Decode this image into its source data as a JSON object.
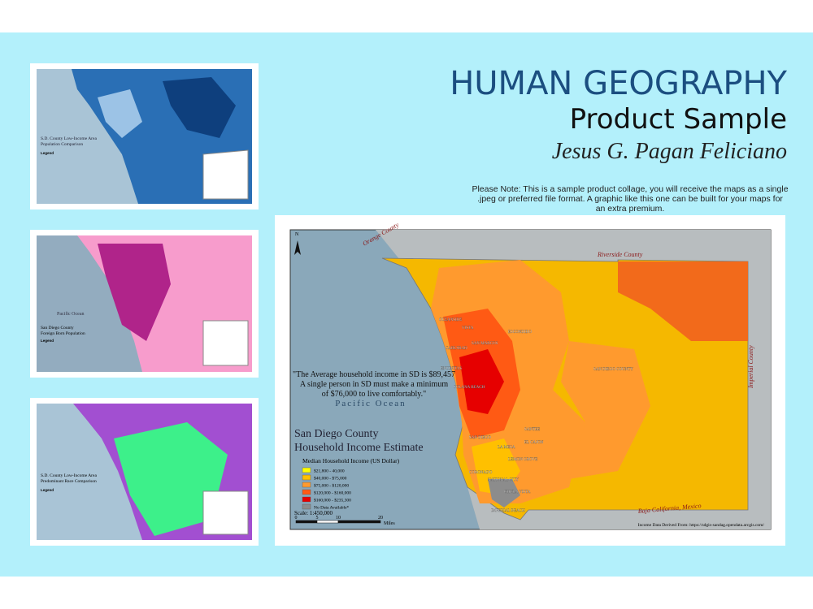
{
  "header": {
    "title": "HUMAN GEOGRAPHY",
    "subtitle": "Product Sample",
    "author": "Jesus G. Pagan Feliciano",
    "note": [
      "Please Note: This is a sample product collage, you will receive the maps as a single",
      ".jpeg or preferred file format. A graphic like this one can be built for your maps for",
      "an extra premium."
    ]
  },
  "maps": [
    {
      "title": [
        "S.D. County Low-Income Area",
        "Population Comparison"
      ],
      "legend": "Legend"
    },
    {
      "title": [
        "San Diego County",
        "Foreign Born Population"
      ],
      "ocean": "Pacific Ocean",
      "legend": "Legend"
    },
    {
      "title": [
        "S.D. County Low-Income Area",
        "Predominant Race Comparison"
      ],
      "legend": "Legend"
    }
  ],
  "main_map": {
    "title": [
      "San Diego County",
      "Household Income Estimate"
    ],
    "quote": [
      "\"The Average household income in SD is $89,457",
      "A single person in SD must make a minimum",
      "of $76,000 to live comfortably.\""
    ],
    "ocean": "Pacific Ocean",
    "north": "N",
    "legend_title": "Median Household Income (US Dollar)",
    "legend": [
      {
        "label": "$21,800 - 40,000",
        "color": "#ffff00"
      },
      {
        "label": "$40,000 - $75,000",
        "color": "#ffc000"
      },
      {
        "label": "$75,000 - $120,000",
        "color": "#ff9a2e"
      },
      {
        "label": "$120,000 - $160,000",
        "color": "#ff5a14"
      },
      {
        "label": "$160,000 - $235,300",
        "color": "#e60000"
      },
      {
        "label": "No Data Available*",
        "color": "#8c8c8c"
      }
    ],
    "regions": [
      "Orange County",
      "Riverside County",
      "Imperial County",
      "Baja California, Mexico"
    ],
    "places": [
      "OCEANSIDE",
      "VISTA",
      "ESCONDIDO",
      "CARLSBAD",
      "SAN MARCOS",
      "ENCINITAS",
      "SOLANA BEACH",
      "SAN DIEGO COUNTY",
      "SAN DIEGO",
      "SANTEE",
      "EL CAJON",
      "LA MESA",
      "LEMON GROVE",
      "CORONADO",
      "NATIONAL CITY",
      "CHULA VISTA",
      "IMPERIAL BEACH"
    ],
    "scale": "Scale: 1:450,000",
    "scale_ticks": [
      "0",
      "5",
      "10",
      "20"
    ],
    "scale_unit": "Miles",
    "source": "Income Data Derived From: https://sdgis-sandag.opendata.arcgis.com/"
  }
}
